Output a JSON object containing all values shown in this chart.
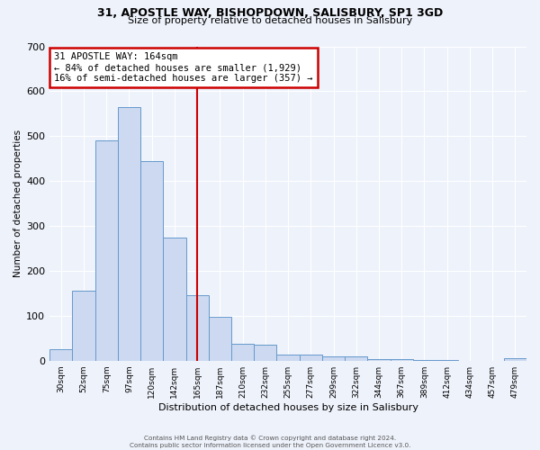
{
  "title_line1": "31, APOSTLE WAY, BISHOPDOWN, SALISBURY, SP1 3GD",
  "title_line2": "Size of property relative to detached houses in Salisbury",
  "xlabel": "Distribution of detached houses by size in Salisbury",
  "ylabel": "Number of detached properties",
  "bar_labels": [
    "30sqm",
    "52sqm",
    "75sqm",
    "97sqm",
    "120sqm",
    "142sqm",
    "165sqm",
    "187sqm",
    "210sqm",
    "232sqm",
    "255sqm",
    "277sqm",
    "299sqm",
    "322sqm",
    "344sqm",
    "367sqm",
    "389sqm",
    "412sqm",
    "434sqm",
    "457sqm",
    "479sqm"
  ],
  "bar_values": [
    25,
    155,
    490,
    565,
    445,
    275,
    145,
    97,
    37,
    35,
    14,
    14,
    10,
    9,
    4,
    3,
    2,
    1,
    0,
    0,
    5
  ],
  "bar_color": "#ccd9f0",
  "bar_edge_color": "#6699cc",
  "ylim": [
    0,
    700
  ],
  "yticks": [
    0,
    100,
    200,
    300,
    400,
    500,
    600,
    700
  ],
  "vline_x_index": 6,
  "vline_color": "#cc0000",
  "annotation_title": "31 APOSTLE WAY: 164sqm",
  "annotation_line1": "← 84% of detached houses are smaller (1,929)",
  "annotation_line2": "16% of semi-detached houses are larger (357) →",
  "annotation_box_color": "#cc0000",
  "footer_line1": "Contains HM Land Registry data © Crown copyright and database right 2024.",
  "footer_line2": "Contains public sector information licensed under the Open Government Licence v3.0.",
  "background_color": "#eef2fb",
  "grid_color": "#ffffff"
}
